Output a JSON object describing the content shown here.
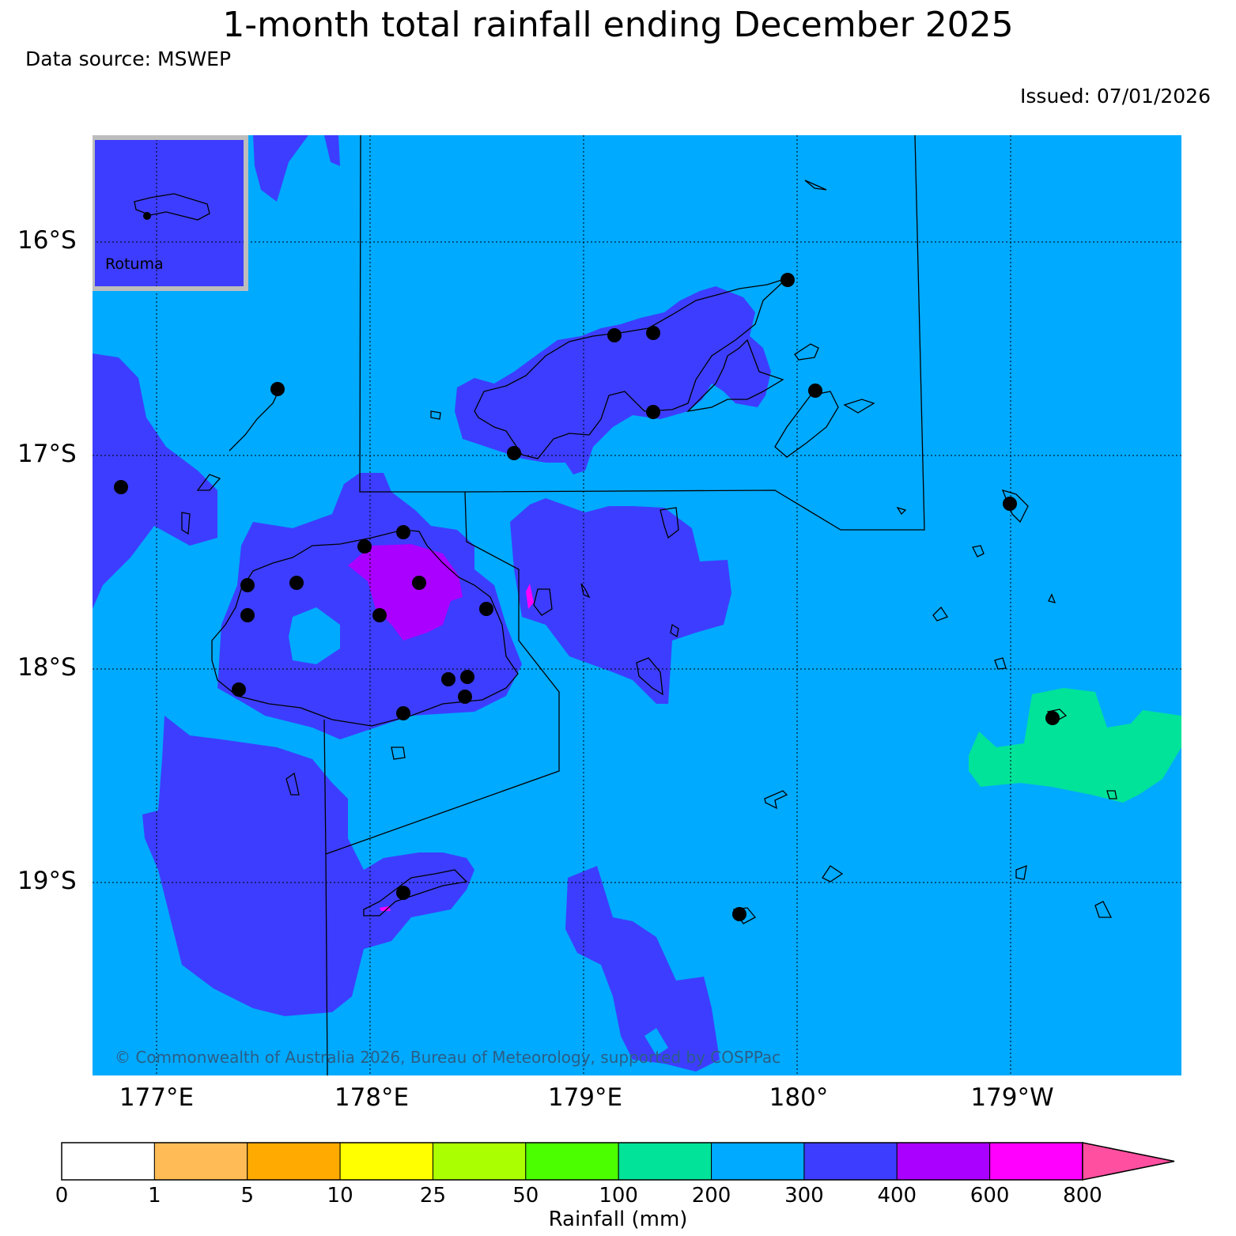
{
  "header": {
    "title": "1-month total rainfall ending December 2025",
    "source": "Data source: MSWEP",
    "issued": "Issued: 07/01/2026"
  },
  "map": {
    "lat_labels": [
      "16°S",
      "17°S",
      "18°S",
      "19°S"
    ],
    "lon_labels": [
      "177°E",
      "178°E",
      "179°E",
      "180°",
      "179°W"
    ],
    "inset_label": "Rotuma",
    "copyright": "© Commonwealth of Australia 2026, Bureau of Meteorology, supported by COSPPac",
    "colors": {
      "ocean_200_300": "#00aaff",
      "band_300_400": "#3d3dff",
      "band_400_600": "#aa00ff",
      "band_600_800": "#ff00ff",
      "band_100_200": "#00e399"
    },
    "station_marker": "station-dot"
  },
  "colorbar": {
    "label": "Rainfall (mm)",
    "ticks": [
      "0",
      "1",
      "5",
      "10",
      "25",
      "50",
      "100",
      "200",
      "300",
      "400",
      "600",
      "800"
    ],
    "colors": [
      "#ffffff",
      "#ffbb55",
      "#ffaa00",
      "#ffff00",
      "#aaff00",
      "#4cff00",
      "#00e399",
      "#00aaff",
      "#3d3dff",
      "#aa00ff",
      "#ff00ff",
      "#ff4fa0"
    ]
  }
}
